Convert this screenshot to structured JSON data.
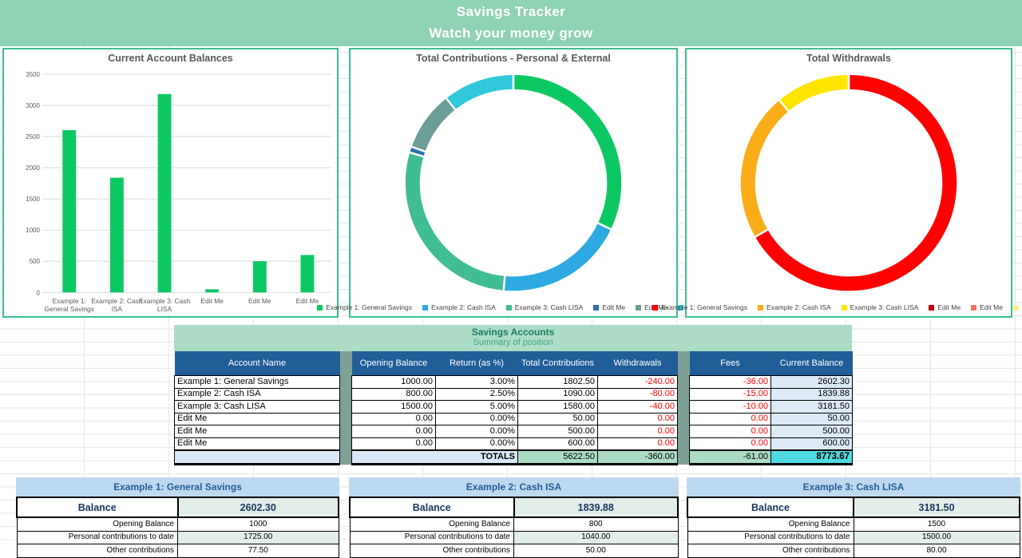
{
  "header": {
    "title": "Savings Tracker",
    "subtitle": "Watch your money grow"
  },
  "theme": {
    "header_band": "#8FD2B3",
    "chart_border": "#3CBD95",
    "table_header_blue": "#215D97",
    "separator_sage": "#7FA095",
    "banner_green": "#ACDCC6",
    "current_balance_blue": "#DCE9F7",
    "totals_green": "#A9DCC3",
    "totals_cyan": "#4FD9E0",
    "panel_banner_blue": "#BDD9F0",
    "tinted_cell": "#E3EEEA",
    "negative_red": "#FE0000",
    "bar_green": "#0CC863"
  },
  "chart_data": [
    {
      "type": "bar",
      "title": "Current Account Balances",
      "categories": [
        "Example 1: General Savings",
        "Example 2: Cash ISA",
        "Example 3: Cash LISA",
        "Edit Me",
        "Edit Me",
        "Edit Me"
      ],
      "values": [
        2602.3,
        1839.88,
        3181.5,
        50,
        500,
        600
      ],
      "xlabel": "",
      "ylabel": "",
      "ylim": [
        0,
        3500
      ],
      "ytick_step": 500,
      "bar_color": "#0CC863",
      "grid": true,
      "legend_position": "none"
    },
    {
      "type": "donut",
      "title": "Total Contributions - Personal & External",
      "total": 5622.5,
      "series": [
        {
          "name": "Example 1: General Savings",
          "value": 1802.5,
          "color": "#0CC863"
        },
        {
          "name": "Example 2: Cash ISA",
          "value": 1090.0,
          "color": "#2EA9E1"
        },
        {
          "name": "Example 3: Cash LISA",
          "value": 1580.0,
          "color": "#41BD92"
        },
        {
          "name": "Edit Me",
          "value": 50.0,
          "color": "#2A72B5"
        },
        {
          "name": "Edit Me",
          "value": 500.0,
          "color": "#6B9E96"
        },
        {
          "name": "Edit Me",
          "value": 600.0,
          "color": "#32C8DC"
        }
      ],
      "legend_position": "bottom"
    },
    {
      "type": "donut",
      "title": "Total Withdrawals",
      "total": -360.0,
      "series": [
        {
          "name": "Example 1: General Savings",
          "value": -240.0,
          "color": "#FE0000"
        },
        {
          "name": "Example 2: Cash ISA",
          "value": -80.0,
          "color": "#FBAD18"
        },
        {
          "name": "Example 3: Cash LISA",
          "value": -40.0,
          "color": "#FFE500"
        },
        {
          "name": "Edit Me",
          "value": 0.0,
          "color": "#C00000"
        },
        {
          "name": "Edit Me",
          "value": 0.0,
          "color": "#F4726A"
        },
        {
          "name": "Edit Me",
          "value": 0.0,
          "color": "#FFEE94"
        }
      ],
      "legend_position": "bottom"
    }
  ],
  "table": {
    "banner_title": "Savings Accounts",
    "banner_subtitle": "Summary of position",
    "columns": [
      "Account Name",
      "Opening Balance",
      "Return (as %)",
      "Total Contributions",
      "Withdrawals",
      "Fees",
      "Current Balance"
    ],
    "rows": [
      [
        "Example 1: General Savings",
        "1000.00",
        "3.00%",
        "1802.50",
        "-240.00",
        "-36.00",
        "2602.30"
      ],
      [
        "Example 2: Cash ISA",
        "800.00",
        "2.50%",
        "1090.00",
        "-80.00",
        "-15.00",
        "1839.88"
      ],
      [
        "Example 3: Cash LISA",
        "1500.00",
        "5.00%",
        "1580.00",
        "-40.00",
        "-10.00",
        "3181.50"
      ],
      [
        "Edit Me",
        "0.00",
        "0.00%",
        "50.00",
        "0.00",
        "0.00",
        "50.00"
      ],
      [
        "Edit Me",
        "0.00",
        "0.00%",
        "500.00",
        "0.00",
        "0.00",
        "500.00"
      ],
      [
        "Edit Me",
        "0.00",
        "0.00%",
        "600.00",
        "0.00",
        "0.00",
        "600.00"
      ]
    ],
    "totals": {
      "label": "TOTALS",
      "contributions": "5622.50",
      "withdrawals": "-360.00",
      "fees": "-61.00",
      "current_balance": "8773.67"
    }
  },
  "panels": [
    {
      "title": "Example 1: General Savings",
      "balance_label": "Balance",
      "balance": "2602.30",
      "rows": [
        [
          "Opening Balance",
          "1000"
        ],
        [
          "Personal contributions to date",
          "1725.00"
        ],
        [
          "Other contributions",
          "77.50"
        ]
      ]
    },
    {
      "title": "Example 2: Cash ISA",
      "balance_label": "Balance",
      "balance": "1839.88",
      "rows": [
        [
          "Opening Balance",
          "800"
        ],
        [
          "Personal contributions to date",
          "1040.00"
        ],
        [
          "Other contributions",
          "50.00"
        ]
      ]
    },
    {
      "title": "Example 3: Cash LISA",
      "balance_label": "Balance",
      "balance": "3181.50",
      "rows": [
        [
          "Opening Balance",
          "1500"
        ],
        [
          "Personal contributions to date",
          "1500.00"
        ],
        [
          "Other contributions",
          "80.00"
        ]
      ]
    }
  ]
}
